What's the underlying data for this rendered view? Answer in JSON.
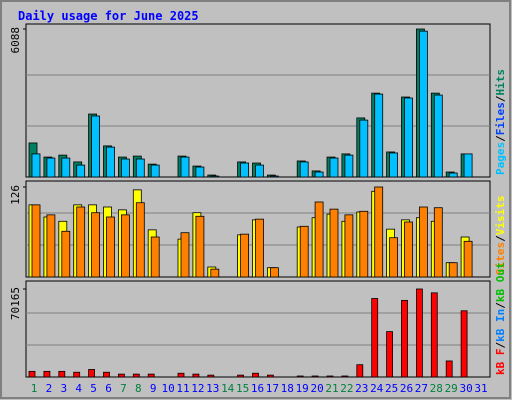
{
  "title": "Daily usage for June 2025",
  "separator": "/",
  "chart_data": [
    {
      "type": "bar",
      "ylim": [
        0,
        6088
      ],
      "yticks": [
        6088
      ],
      "legend": [
        {
          "name": "Pages",
          "color": "#00c0ff"
        },
        {
          "name": "Files",
          "color": "#0040ff"
        },
        {
          "name": "Hits",
          "color": "#008060"
        }
      ],
      "series": [
        {
          "color": "#008060",
          "values": [
            1400,
            820,
            900,
            620,
            2590,
            1280,
            820,
            860,
            530,
            0,
            860,
            450,
            80,
            0,
            620,
            575,
            80,
            0,
            660,
            250,
            820,
            950,
            2430,
            3450,
            1030,
            3290,
            6088,
            3450,
            205,
            950,
            0
          ]
        },
        {
          "color": "#00c0ff",
          "values": [
            950,
            780,
            780,
            490,
            2510,
            1230,
            740,
            740,
            490,
            0,
            820,
            410,
            40,
            0,
            575,
            490,
            40,
            0,
            620,
            205,
            780,
            900,
            2340,
            3410,
            990,
            3250,
            6000,
            3370,
            165,
            950,
            0
          ]
        }
      ]
    },
    {
      "type": "bar",
      "ylim": [
        0,
        126
      ],
      "yticks": [
        126
      ],
      "legend": [
        {
          "name": "Sites",
          "color": "#ff8000"
        },
        {
          "name": "Visits",
          "color": "#ffff00"
        }
      ],
      "series": [
        {
          "color": "#ffff00",
          "values": [
            101,
            84,
            78,
            101,
            101,
            98,
            94,
            122,
            66,
            0,
            53,
            90,
            14,
            0,
            59,
            80,
            13,
            0,
            70,
            83,
            88,
            78,
            91,
            120,
            67,
            80,
            83,
            78,
            20,
            56,
            0
          ]
        },
        {
          "color": "#ff8000",
          "values": [
            101,
            87,
            64,
            98,
            90,
            84,
            87,
            104,
            56,
            0,
            62,
            85,
            11,
            0,
            60,
            81,
            13,
            0,
            71,
            105,
            95,
            87,
            92,
            126,
            55,
            77,
            98,
            97,
            20,
            50,
            0
          ]
        }
      ]
    },
    {
      "type": "bar",
      "ylim": [
        0,
        70165
      ],
      "yticks": [
        70165
      ],
      "legend": [
        {
          "name": "kB F",
          "color": "#ff0000"
        },
        {
          "name": "kB In",
          "color": "#0080ff"
        },
        {
          "name": "kB Out",
          "color": "#00c000"
        }
      ],
      "categories": [
        "1",
        "2",
        "3",
        "4",
        "5",
        "6",
        "7",
        "8",
        "9",
        "10",
        "11",
        "12",
        "13",
        "14",
        "15",
        "16",
        "17",
        "18",
        "19",
        "20",
        "21",
        "22",
        "23",
        "24",
        "25",
        "26",
        "27",
        "28",
        "29",
        "30",
        "31"
      ],
      "category_colors": [
        "#008040",
        "#0000ff",
        "#0000ff",
        "#0000ff",
        "#0000ff",
        "#0000ff",
        "#008040",
        "#008040",
        "#0000ff",
        "#0000ff",
        "#0000ff",
        "#0000ff",
        "#0000ff",
        "#008040",
        "#008040",
        "#0000ff",
        "#0000ff",
        "#0000ff",
        "#0000ff",
        "#0000ff",
        "#008040",
        "#008040",
        "#0000ff",
        "#0000ff",
        "#0000ff",
        "#0000ff",
        "#0000ff",
        "#008040",
        "#008040",
        "#0000ff",
        "#0000ff"
      ],
      "series": [
        {
          "color": "#ff0000",
          "values": [
            4500,
            4500,
            4500,
            3800,
            6000,
            3800,
            2300,
            2300,
            2300,
            0,
            3000,
            2300,
            1500,
            0,
            1500,
            3000,
            1500,
            0,
            800,
            800,
            800,
            800,
            9800,
            62600,
            36200,
            61100,
            70165,
            67100,
            12800,
            52800,
            0
          ]
        }
      ]
    }
  ]
}
